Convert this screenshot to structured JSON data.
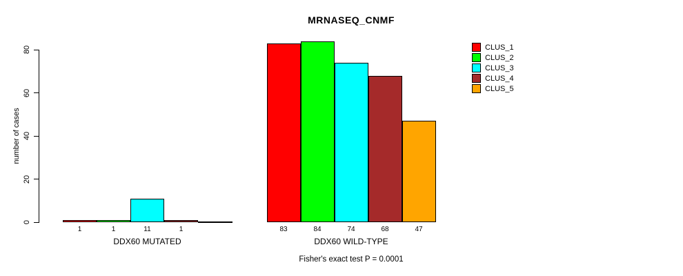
{
  "chart_data": {
    "type": "bar",
    "title": "MRNASEQ_CNMF",
    "categories": [
      "DDX60 MUTATED",
      "DDX60 WILD-TYPE"
    ],
    "series": [
      {
        "name": "CLUS_1",
        "color": "#FF0000",
        "values": [
          1,
          83
        ]
      },
      {
        "name": "CLUS_2",
        "color": "#00FF00",
        "values": [
          1,
          84
        ]
      },
      {
        "name": "CLUS_3",
        "color": "#00FFFF",
        "values": [
          11,
          74
        ]
      },
      {
        "name": "CLUS_4",
        "color": "#A52A2A",
        "values": [
          1,
          68
        ]
      },
      {
        "name": "CLUS_5",
        "color": "#FFA500",
        "values": [
          0,
          47
        ]
      }
    ],
    "bar_value_labels": [
      [
        "1",
        "1",
        "11",
        "1",
        ""
      ],
      [
        "83",
        "84",
        "74",
        "68",
        "47"
      ]
    ],
    "xlabel": "",
    "ylabel": "number of cases",
    "ylim": [
      0,
      80
    ],
    "yticks": [
      0,
      20,
      40,
      60,
      80
    ],
    "grid": false,
    "legend_position": "top-right",
    "annotation": "Fisher's exact test P = 0.0001"
  }
}
